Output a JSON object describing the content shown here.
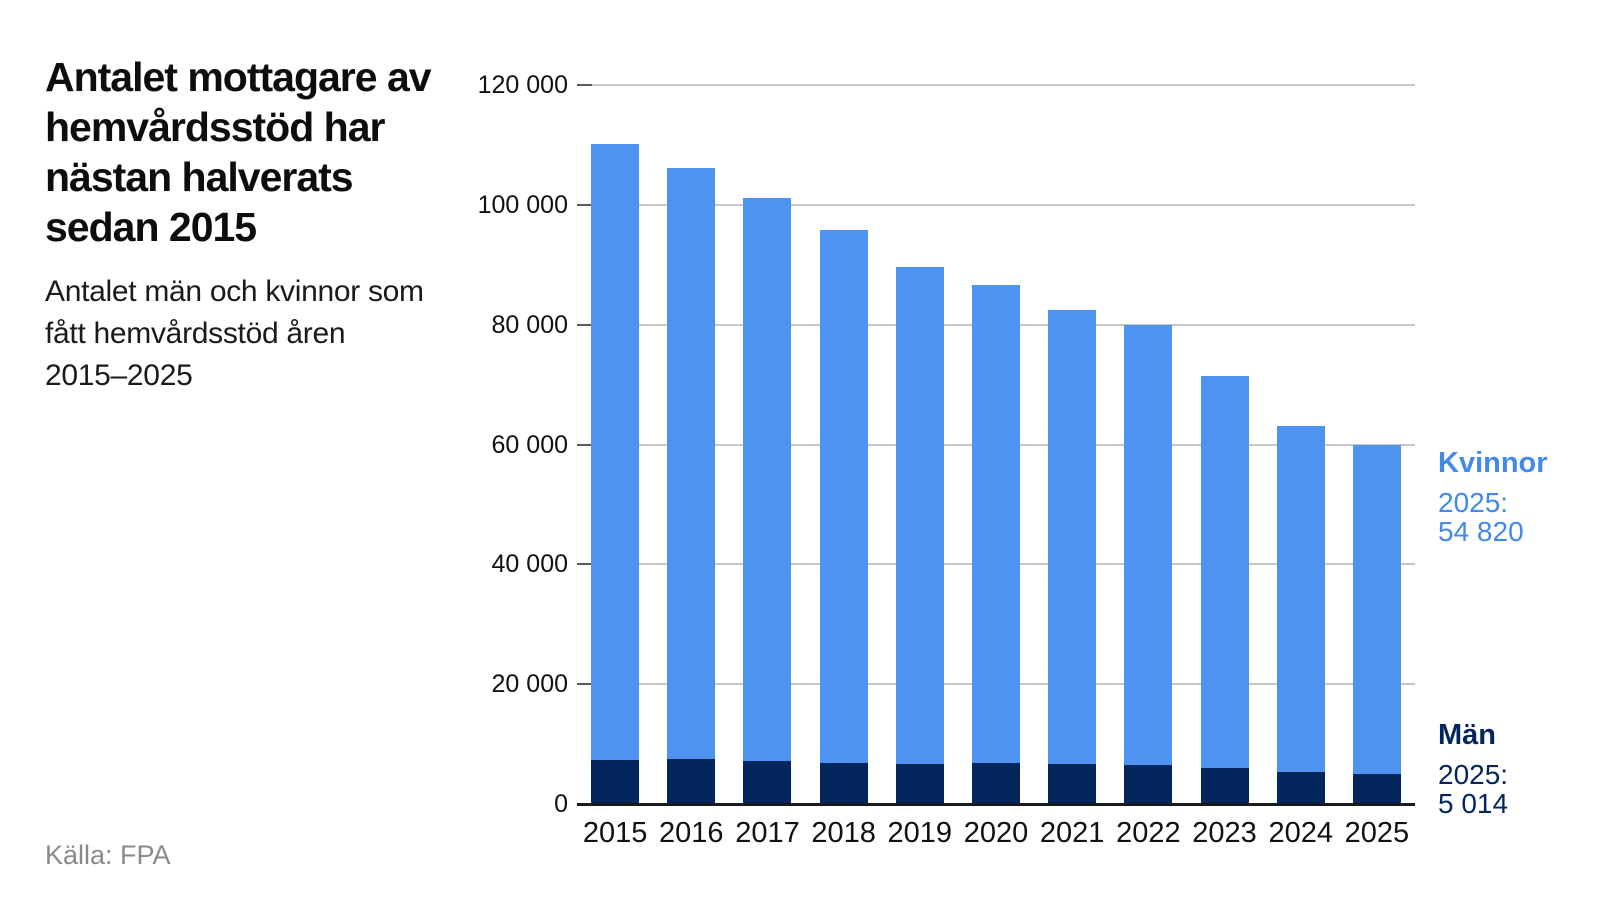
{
  "header": {
    "title_lines": [
      "Antalet mottagare av",
      "hemvårdsstöd har",
      "nästan halverats",
      "sedan 2015"
    ],
    "subtitle_lines": [
      "Antalet män och kvinnor som",
      "fått hemvårdsstöd åren",
      "2015–2025"
    ]
  },
  "source": {
    "text": "Källa: FPA"
  },
  "legend": {
    "women": {
      "title": "Kvinnor",
      "line1": "2025:",
      "line2": "54 820",
      "color": "#4189ec"
    },
    "men": {
      "title": "Män",
      "line1": "2025:",
      "line2": "5 014",
      "color": "#03265c"
    }
  },
  "colors": {
    "bar_women": "#4d94f0",
    "bar_men": "#03265c",
    "gridline": "#c7c7c7",
    "axis": "#1a1a1a",
    "tick": "#5a5a5a",
    "text": "#111111",
    "source_text": "#8a8a8a"
  },
  "chart_data": {
    "type": "bar",
    "stacked": true,
    "title": "Antalet mottagare av hemvårdsstöd har nästan halverats sedan 2015",
    "subtitle": "Antalet män och kvinnor som fått hemvårdsstöd åren 2015–2025",
    "source": "Källa: FPA",
    "categories": [
      "2015",
      "2016",
      "2017",
      "2018",
      "2019",
      "2020",
      "2021",
      "2022",
      "2023",
      "2024",
      "2025"
    ],
    "series": [
      {
        "name": "Män",
        "color": "#03265c",
        "values": [
          7400,
          7500,
          7150,
          6850,
          6650,
          6850,
          6650,
          6550,
          5950,
          5400,
          5014
        ]
      },
      {
        "name": "Kvinnor",
        "color": "#4d94f0",
        "values": [
          102700,
          98700,
          93950,
          88950,
          83050,
          79850,
          75750,
          73350,
          65550,
          57700,
          54820
        ]
      }
    ],
    "totals": [
      110100,
      106200,
      101100,
      95800,
      89700,
      86700,
      82400,
      79900,
      71500,
      63100,
      59834
    ],
    "annotations": [
      {
        "series": "Kvinnor",
        "category": "2025",
        "value": 54820,
        "text": "Kvinnor 2025: 54 820"
      },
      {
        "series": "Män",
        "category": "2025",
        "value": 5014,
        "text": "Män 2025: 5 014"
      }
    ],
    "ylim": [
      0,
      120000
    ],
    "yticks": [
      0,
      20000,
      40000,
      60000,
      80000,
      100000,
      120000
    ],
    "ytick_labels": [
      "0",
      "20 000",
      "40 000",
      "60 000",
      "80 000",
      "100 000",
      "120 000"
    ],
    "xlabel": "",
    "ylabel": "",
    "grid": true,
    "legend_position": "right"
  }
}
